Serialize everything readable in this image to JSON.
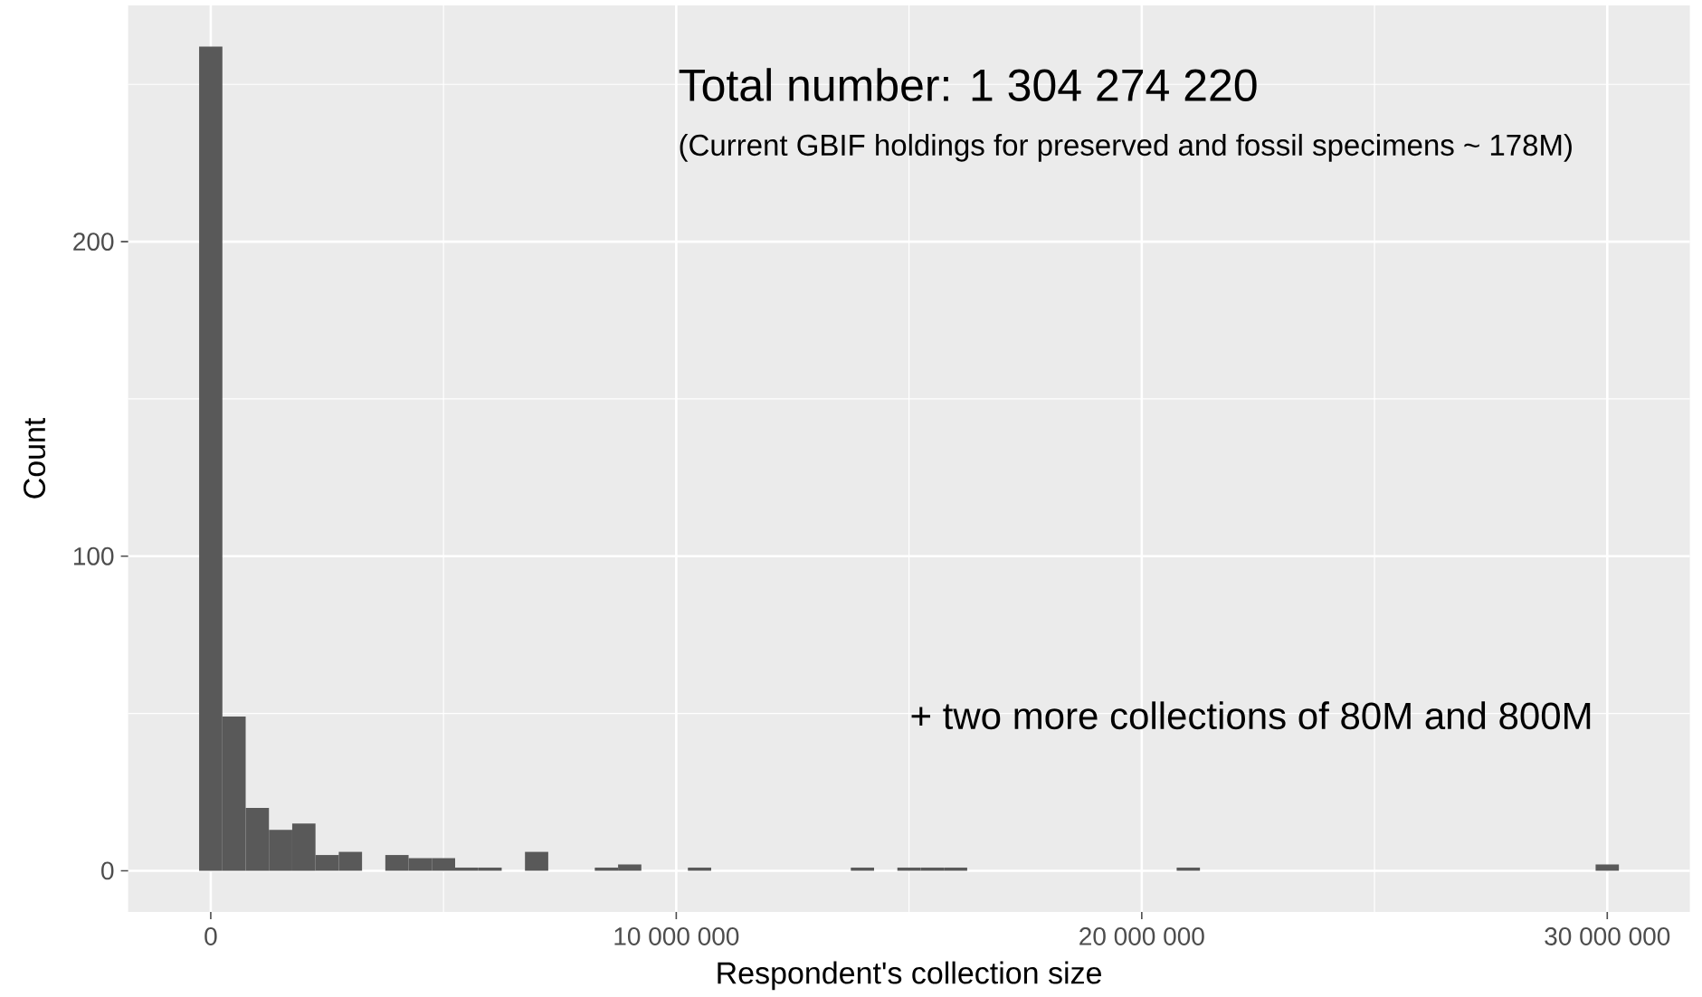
{
  "chart_data": {
    "type": "histogram",
    "xlabel": "Respondent's collection size",
    "ylabel": "Count",
    "annotations": [
      "Total number: 1 304 274 220",
      "(Current GBIF holdings for preserved and fossil specimens ~ 178M)",
      "+ two more collections of 80M and 800M"
    ],
    "bins": [
      -250000,
      250000,
      750000,
      1250000,
      1750000,
      2250000,
      2750000,
      3250000,
      3750000,
      4250000,
      4750000,
      5250000,
      5750000,
      6250000,
      6750000,
      7250000,
      7750000,
      8250000,
      8750000,
      9250000,
      9750000,
      10250000,
      10750000,
      11250000,
      11750000,
      12250000,
      12750000,
      13250000,
      13750000,
      14250000,
      14750000,
      15250000,
      15750000,
      16250000,
      16750000,
      17250000,
      17750000,
      18250000,
      18750000,
      19250000,
      19750000,
      20250000,
      20750000,
      21250000,
      21750000,
      22250000,
      22750000,
      23250000,
      23750000,
      24250000,
      24750000,
      25250000,
      25750000,
      26250000,
      26750000,
      27250000,
      27750000,
      28250000,
      28750000,
      29250000,
      29750000,
      30250000
    ],
    "values": [
      262,
      49,
      20,
      13,
      15,
      5,
      6,
      0,
      5,
      4,
      4,
      1,
      1,
      0,
      6,
      0,
      0,
      1,
      2,
      0,
      0,
      1,
      0,
      0,
      0,
      0,
      0,
      0,
      1,
      0,
      1,
      1,
      1,
      0,
      0,
      0,
      0,
      0,
      0,
      0,
      0,
      0,
      1,
      0,
      0,
      0,
      0,
      0,
      0,
      0,
      0,
      0,
      0,
      0,
      0,
      0,
      0,
      0,
      0,
      0,
      2
    ],
    "color": "#595959",
    "xlim": [
      -1775000,
      31775000
    ],
    "ylim": [
      -13.1,
      275.1
    ],
    "xticks": [
      {
        "value": 0,
        "label": "0"
      },
      {
        "value": 10000000,
        "label": "10 000 000"
      },
      {
        "value": 20000000,
        "label": "20 000 000"
      },
      {
        "value": 30000000,
        "label": "30 000 000"
      }
    ],
    "yticks": [
      0,
      100,
      200
    ],
    "grid": true
  }
}
